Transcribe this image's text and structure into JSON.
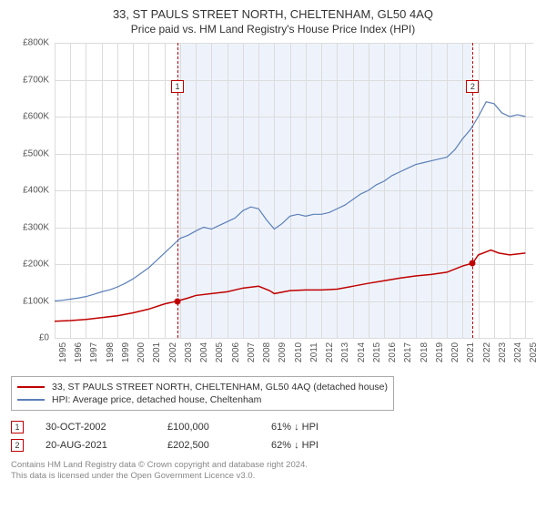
{
  "title": "33, ST PAULS STREET NORTH, CHELTENHAM, GL50 4AQ",
  "subtitle": "Price paid vs. HM Land Registry's House Price Index (HPI)",
  "chart": {
    "type": "line",
    "y_axis": {
      "min": 0,
      "max": 800000,
      "step": 100000,
      "labels": [
        "£0",
        "£100K",
        "£200K",
        "£300K",
        "£400K",
        "£500K",
        "£600K",
        "£700K",
        "£800K"
      ],
      "label_fontsize": 10,
      "label_color": "#555555"
    },
    "x_axis": {
      "min": 1995,
      "max": 2025.5,
      "ticks": [
        1995,
        1996,
        1997,
        1998,
        1999,
        2000,
        2001,
        2002,
        2003,
        2004,
        2005,
        2006,
        2007,
        2008,
        2009,
        2010,
        2011,
        2012,
        2013,
        2014,
        2015,
        2016,
        2017,
        2018,
        2019,
        2020,
        2021,
        2022,
        2023,
        2024,
        2025
      ],
      "labels": [
        "1995",
        "1996",
        "1997",
        "1998",
        "1999",
        "2000",
        "2001",
        "2002",
        "2003",
        "2004",
        "2005",
        "2006",
        "2007",
        "2008",
        "2009",
        "2010",
        "2011",
        "2012",
        "2013",
        "2014",
        "2015",
        "2016",
        "2017",
        "2018",
        "2019",
        "2020",
        "2021",
        "2022",
        "2023",
        "2024",
        "2025"
      ],
      "label_fontsize": 10,
      "label_color": "#555555"
    },
    "highlight_band": {
      "start": 2002.83,
      "end": 2021.64,
      "color": "#eef3fb"
    },
    "grid_color": "#dcdcdc",
    "background_color": "#ffffff",
    "series": [
      {
        "id": "property",
        "label": "33, ST PAULS STREET NORTH, CHELTENHAM, GL50 4AQ (detached house)",
        "color": "#c00000",
        "width": 1.5,
        "points": [
          [
            1995,
            45000
          ],
          [
            1996,
            47000
          ],
          [
            1997,
            50000
          ],
          [
            1998,
            55000
          ],
          [
            1999,
            60000
          ],
          [
            2000,
            68000
          ],
          [
            2001,
            78000
          ],
          [
            2002,
            92000
          ],
          [
            2002.83,
            100000
          ],
          [
            2003.5,
            108000
          ],
          [
            2004,
            115000
          ],
          [
            2005,
            120000
          ],
          [
            2006,
            125000
          ],
          [
            2007,
            135000
          ],
          [
            2008,
            140000
          ],
          [
            2008.7,
            128000
          ],
          [
            2009,
            120000
          ],
          [
            2010,
            128000
          ],
          [
            2011,
            130000
          ],
          [
            2012,
            130000
          ],
          [
            2013,
            132000
          ],
          [
            2014,
            140000
          ],
          [
            2015,
            148000
          ],
          [
            2016,
            155000
          ],
          [
            2017,
            162000
          ],
          [
            2018,
            168000
          ],
          [
            2019,
            172000
          ],
          [
            2020,
            178000
          ],
          [
            2021,
            195000
          ],
          [
            2021.64,
            202500
          ],
          [
            2022,
            225000
          ],
          [
            2022.8,
            238000
          ],
          [
            2023.3,
            230000
          ],
          [
            2024,
            225000
          ],
          [
            2025,
            230000
          ]
        ]
      },
      {
        "id": "hpi",
        "label": "HPI: Average price, detached house, Cheltenham",
        "color": "#5b7fb8",
        "width": 1.2,
        "points": [
          [
            1995,
            100000
          ],
          [
            1995.5,
            102000
          ],
          [
            1996,
            105000
          ],
          [
            1996.5,
            108000
          ],
          [
            1997,
            112000
          ],
          [
            1997.5,
            118000
          ],
          [
            1998,
            125000
          ],
          [
            1998.5,
            130000
          ],
          [
            1999,
            138000
          ],
          [
            1999.5,
            148000
          ],
          [
            2000,
            160000
          ],
          [
            2000.5,
            175000
          ],
          [
            2001,
            190000
          ],
          [
            2001.5,
            210000
          ],
          [
            2002,
            230000
          ],
          [
            2002.5,
            250000
          ],
          [
            2003,
            270000
          ],
          [
            2003.5,
            278000
          ],
          [
            2004,
            290000
          ],
          [
            2004.5,
            300000
          ],
          [
            2005,
            295000
          ],
          [
            2005.5,
            305000
          ],
          [
            2006,
            315000
          ],
          [
            2006.5,
            325000
          ],
          [
            2007,
            345000
          ],
          [
            2007.5,
            355000
          ],
          [
            2008,
            350000
          ],
          [
            2008.5,
            320000
          ],
          [
            2009,
            295000
          ],
          [
            2009.5,
            310000
          ],
          [
            2010,
            330000
          ],
          [
            2010.5,
            335000
          ],
          [
            2011,
            330000
          ],
          [
            2011.5,
            335000
          ],
          [
            2012,
            335000
          ],
          [
            2012.5,
            340000
          ],
          [
            2013,
            350000
          ],
          [
            2013.5,
            360000
          ],
          [
            2014,
            375000
          ],
          [
            2014.5,
            390000
          ],
          [
            2015,
            400000
          ],
          [
            2015.5,
            415000
          ],
          [
            2016,
            425000
          ],
          [
            2016.5,
            440000
          ],
          [
            2017,
            450000
          ],
          [
            2017.5,
            460000
          ],
          [
            2018,
            470000
          ],
          [
            2018.5,
            475000
          ],
          [
            2019,
            480000
          ],
          [
            2019.5,
            485000
          ],
          [
            2020,
            490000
          ],
          [
            2020.5,
            510000
          ],
          [
            2021,
            540000
          ],
          [
            2021.5,
            565000
          ],
          [
            2022,
            600000
          ],
          [
            2022.5,
            640000
          ],
          [
            2023,
            635000
          ],
          [
            2023.5,
            610000
          ],
          [
            2024,
            600000
          ],
          [
            2024.5,
            605000
          ],
          [
            2025,
            600000
          ]
        ]
      }
    ],
    "reference_lines": [
      {
        "x": 2002.83,
        "color": "#c00000",
        "marker": "1",
        "marker_y": 700000
      },
      {
        "x": 2021.64,
        "color": "#c00000",
        "marker": "2",
        "marker_y": 700000
      }
    ],
    "data_points": [
      {
        "x": 2002.83,
        "y": 100000,
        "color": "#c00000"
      },
      {
        "x": 2021.64,
        "y": 202500,
        "color": "#c00000"
      }
    ]
  },
  "legend": {
    "items": [
      {
        "color": "#c00000",
        "label": "33, ST PAULS STREET NORTH, CHELTENHAM, GL50 4AQ (detached house)"
      },
      {
        "color": "#5b7fb8",
        "label": "HPI: Average price, detached house, Cheltenham"
      }
    ]
  },
  "sales": [
    {
      "marker": "1",
      "date": "30-OCT-2002",
      "price": "£100,000",
      "delta": "61% ↓ HPI"
    },
    {
      "marker": "2",
      "date": "20-AUG-2021",
      "price": "£202,500",
      "delta": "62% ↓ HPI"
    }
  ],
  "footer": {
    "line1": "Contains HM Land Registry data © Crown copyright and database right 2024.",
    "line2": "This data is licensed under the Open Government Licence v3.0."
  }
}
